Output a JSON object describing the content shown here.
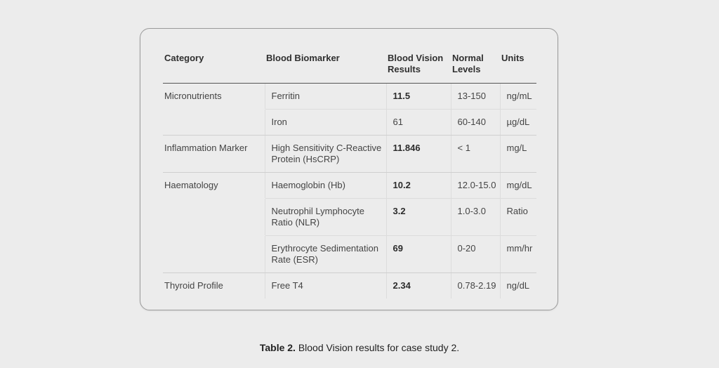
{
  "table": {
    "headers": {
      "category": "Category",
      "biomarker": "Blood Biomarker",
      "results_line1": "Blood Vision",
      "results_line2": "Results",
      "normal_line1": "Normal",
      "normal_line2": "Levels",
      "units": "Units"
    },
    "rows": [
      {
        "category": "Micronutrients",
        "biomarker_line1": "Ferritin",
        "biomarker_line2": "",
        "result": "11.5",
        "normal": "13-150",
        "units": "ng/mL"
      },
      {
        "category": "",
        "biomarker_line1": "Iron",
        "biomarker_line2": "",
        "result": "61",
        "normal": "60-140",
        "units": "µg/dL"
      },
      {
        "category": "Inflammation Marker",
        "biomarker_line1": "High Sensitivity C-Reactive",
        "biomarker_line2": "Protein (HsCRP)",
        "result": "11.846",
        "normal": "< 1",
        "units": "mg/L"
      },
      {
        "category": "Haematology",
        "biomarker_line1": "Haemoglobin (Hb)",
        "biomarker_line2": "",
        "result": "10.2",
        "normal": "12.0-15.0",
        "units": "mg/dL"
      },
      {
        "category": "",
        "biomarker_line1": "Neutrophil Lymphocyte",
        "biomarker_line2": "Ratio (NLR)",
        "result": "3.2",
        "normal": "1.0-3.0",
        "units": "Ratio"
      },
      {
        "category": "",
        "biomarker_line1": "Erythrocyte Sedimentation",
        "biomarker_line2": "Rate (ESR)",
        "result": "69",
        "normal": "0-20",
        "units": "mm/hr"
      },
      {
        "category": "Thyroid Profile",
        "biomarker_line1": "Free T4",
        "biomarker_line2": "",
        "result": "2.34",
        "normal": "0.78-2.19",
        "units": "ng/dL"
      }
    ]
  },
  "caption": {
    "label": "Table 2.",
    "text": " Blood Vision results for case study 2."
  }
}
